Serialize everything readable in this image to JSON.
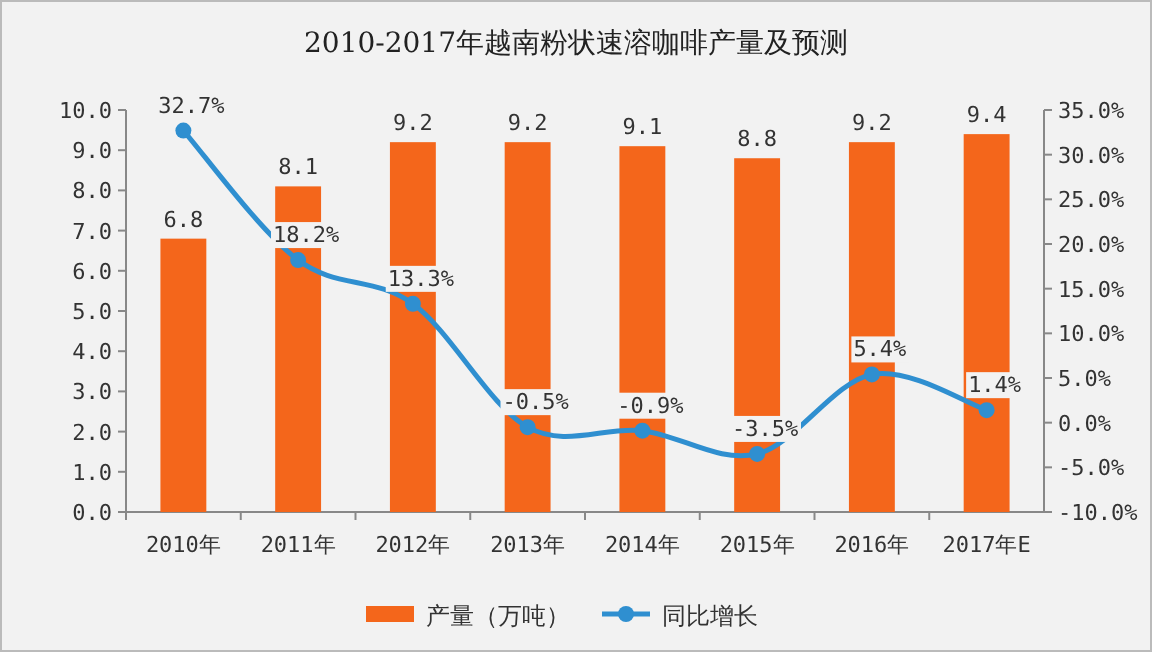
{
  "chart_data": {
    "type": "bar",
    "title": "2010-2017年越南粉状速溶咖啡产量及预测",
    "categories": [
      "2010年",
      "2011年",
      "2012年",
      "2013年",
      "2014年",
      "2015年",
      "2016年",
      "2017年E"
    ],
    "series": [
      {
        "name": "产量（万吨）",
        "color": "#f4661b",
        "values": [
          6.8,
          8.1,
          9.2,
          9.2,
          9.1,
          8.8,
          9.2,
          9.4
        ],
        "data_labels": true
      },
      {
        "name": "同比增长",
        "type": "line",
        "axis": "y2",
        "color": "#2f8fd0",
        "values": [
          32.7,
          18.2,
          13.3,
          -0.5,
          -0.9,
          -3.5,
          5.4,
          1.4
        ],
        "value_labels": [
          "32.7%",
          "18.2%",
          "13.3%",
          "-0.5%",
          "-0.9%",
          "-3.5%",
          "5.4%",
          "1.4%"
        ],
        "marker": "circle"
      }
    ],
    "ylim": [
      0,
      10
    ],
    "yticks": [
      {
        "value": 0,
        "label": "0.0"
      },
      {
        "value": 1,
        "label": "1.0"
      },
      {
        "value": 2,
        "label": "2.0"
      },
      {
        "value": 3,
        "label": "3.0"
      },
      {
        "value": 4,
        "label": "4.0"
      },
      {
        "value": 5,
        "label": "5.0"
      },
      {
        "value": 6,
        "label": "6.0"
      },
      {
        "value": 7,
        "label": "7.0"
      },
      {
        "value": 8,
        "label": "8.0"
      },
      {
        "value": 9,
        "label": "9.0"
      },
      {
        "value": 10,
        "label": "10.0"
      }
    ],
    "y2lim": [
      -10,
      35
    ],
    "y2ticks": [
      {
        "value": -10,
        "label": "-10.0%"
      },
      {
        "value": -5,
        "label": "-5.0%"
      },
      {
        "value": 0,
        "label": "0.0%"
      },
      {
        "value": 5,
        "label": "5.0%"
      },
      {
        "value": 10,
        "label": "10.0%"
      },
      {
        "value": 15,
        "label": "15.0%"
      },
      {
        "value": 20,
        "label": "20.0%"
      },
      {
        "value": 25,
        "label": "25.0%"
      },
      {
        "value": 30,
        "label": "30.0%"
      },
      {
        "value": 35,
        "label": "35.0%"
      }
    ],
    "legend": "bottom",
    "grid": false
  }
}
